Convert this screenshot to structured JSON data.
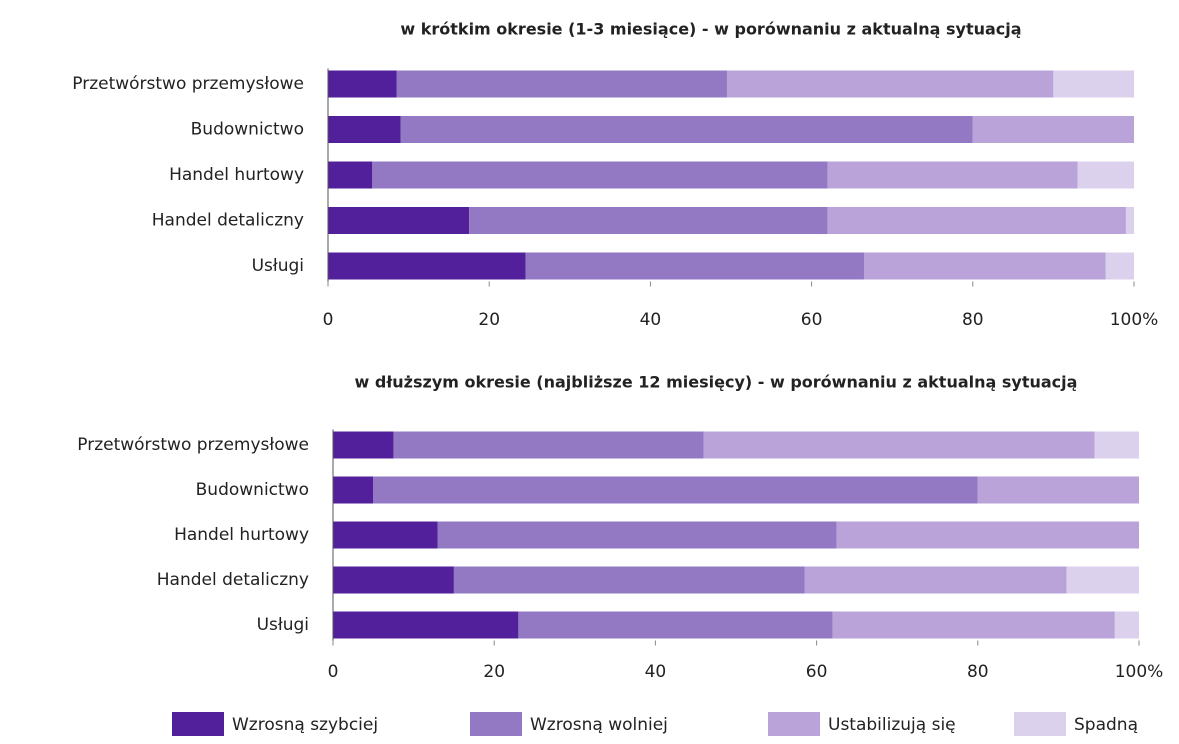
{
  "chart_data": [
    {
      "type": "bar",
      "orientation": "horizontal",
      "stacked": true,
      "title": "w krótkim okresie (1-3 miesiące) - w porównaniu z aktualną sytuacją",
      "categories": [
        "Przetwórstwo przemysłowe",
        "Budownictwo",
        "Handel hurtowy",
        "Handel detaliczny",
        "Usługi"
      ],
      "series": [
        {
          "name": "Wzrosną szybciej",
          "color": "#52209a",
          "values": [
            8.5,
            9,
            5.5,
            17.5,
            24.5
          ]
        },
        {
          "name": "Wzrosną wolniej",
          "color": "#9378c4",
          "values": [
            41,
            71,
            56.5,
            44.5,
            42
          ]
        },
        {
          "name": "Ustabilizują się",
          "color": "#b9a3d9",
          "values": [
            40.5,
            20,
            31,
            37,
            30
          ]
        },
        {
          "name": "Spadną",
          "color": "#dcd1ec",
          "values": [
            10,
            0,
            7,
            1,
            3.5
          ]
        }
      ],
      "xlim": [
        0,
        100
      ],
      "xticks": [
        0,
        20,
        40,
        60,
        80,
        {
          "value": 100,
          "label": "100%"
        }
      ]
    },
    {
      "type": "bar",
      "orientation": "horizontal",
      "stacked": true,
      "title": "w dłuższym okresie (najbliższe 12 miesięcy) - w porównaniu z aktualną sytuacją",
      "categories": [
        "Przetwórstwo przemysłowe",
        "Budownictwo",
        "Handel hurtowy",
        "Handel detaliczny",
        "Usługi"
      ],
      "series": [
        {
          "color": "#52209a",
          "values": [
            7.5,
            5,
            13,
            15,
            23
          ]
        },
        {
          "color": "#9378c4",
          "values": [
            38.5,
            75,
            49.5,
            43.5,
            39
          ]
        },
        {
          "color": "#b9a3d9",
          "values": [
            48.5,
            20,
            37.5,
            32.5,
            35
          ]
        },
        {
          "color": "#dcd1ec",
          "values": [
            5.5,
            0,
            0,
            9,
            3
          ]
        }
      ],
      "xlim": [
        0,
        100
      ],
      "xticks": [
        0,
        20,
        40,
        60,
        80,
        {
          "value": 100,
          "label": "100%"
        }
      ]
    }
  ]
}
